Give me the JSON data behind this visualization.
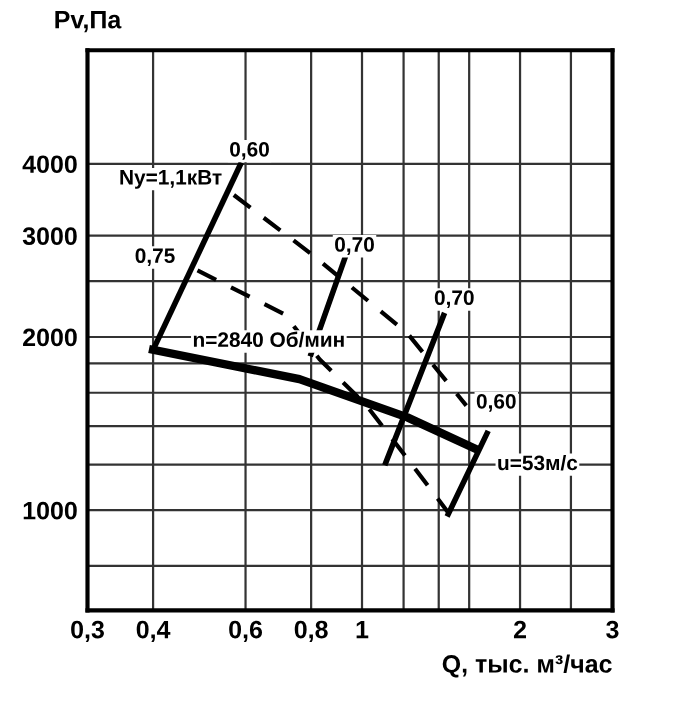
{
  "chart_data": {
    "type": "line",
    "xlabel": "Q, тыс. м³/час",
    "ylabel": "Pv,Па",
    "log": "xy",
    "grid": true,
    "legend": false,
    "marker": "none",
    "xlim": [
      0.3,
      3
    ],
    "ylim": [
      670,
      6300
    ],
    "xticks": [
      {
        "value": 0.3,
        "label": "0,3"
      },
      {
        "value": 0.4,
        "label": "0,4"
      },
      {
        "value": 0.6,
        "label": "0,6"
      },
      {
        "value": 0.8,
        "label": "0,8"
      },
      {
        "value": 1,
        "label": "1"
      },
      {
        "value": 1.2,
        "label": null
      },
      {
        "value": 1.4,
        "label": null
      },
      {
        "value": 1.6,
        "label": null
      },
      {
        "value": 2,
        "label": "2"
      },
      {
        "value": 2.5,
        "label": null
      },
      {
        "value": 3,
        "label": "3"
      }
    ],
    "yticks": [
      {
        "value": 800,
        "label": null
      },
      1000,
      {
        "value": 1200,
        "label": null
      },
      {
        "value": 1400,
        "label": null
      },
      {
        "value": 1600,
        "label": null
      },
      {
        "value": 1800,
        "label": null
      },
      2000,
      {
        "value": 2500,
        "label": null
      },
      3000,
      4000
    ],
    "series": [
      {
        "color": "#000000",
        "line_style": "solid",
        "x": [
          0.4,
          0.76,
          1.22,
          1.64
        ],
        "values": [
          1900,
          1690,
          1450,
          1280
        ]
      },
      {
        "color": "#000000",
        "line_style": "solid",
        "x": [
          0.4,
          0.586
        ],
        "values": [
          1900,
          3980
        ]
      },
      {
        "color": "#000000",
        "line_style": "dashed",
        "x": [
          0.57,
          0.8,
          1.22,
          1.58
        ],
        "values": [
          3530,
          2790,
          2030,
          1520
        ]
      },
      {
        "color": "#000000",
        "line_style": "dashed",
        "x": [
          0.486,
          0.712,
          0.83,
          1.02,
          1.22,
          1.46
        ],
        "values": [
          2610,
          2190,
          1830,
          1520,
          1230,
          990
        ]
      },
      {
        "color": "#000000",
        "line_style": "solid",
        "x": [
          0.8,
          0.93
        ],
        "values": [
          1870,
          2760
        ]
      },
      {
        "color": "#000000",
        "line_style": "solid",
        "x": [
          1.11,
          1.43
        ],
        "values": [
          1210,
          2180
        ]
      },
      {
        "color": "#000000",
        "line_style": "solid",
        "x": [
          1.46,
          1.73
        ],
        "values": [
          985,
          1360
        ]
      }
    ],
    "annotations": [
      "0,60",
      "Ny=1,1кВт",
      "0,75",
      "0,70",
      "0,70",
      "n=2840 Об/мин",
      "0,60",
      "u=53м/с"
    ]
  }
}
